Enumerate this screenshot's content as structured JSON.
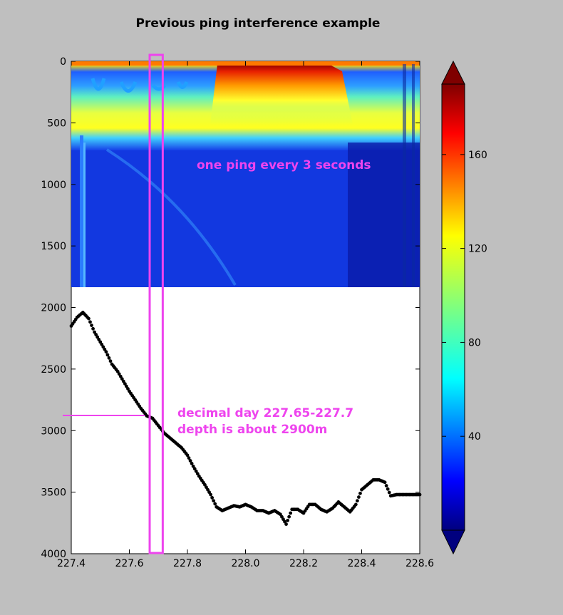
{
  "chart_data": {
    "type": "heatmap",
    "title": "Previous ping interference example",
    "xlabel": "",
    "ylabel": "",
    "xlim": [
      227.4,
      228.6
    ],
    "ylim": [
      4000,
      0
    ],
    "y_inverted": true,
    "x_ticks": [
      "227.4",
      "227.6",
      "227.8",
      "228.0",
      "228.2",
      "228.4",
      "228.6"
    ],
    "y_ticks": [
      "0",
      "500",
      "1000",
      "1500",
      "2000",
      "2500",
      "3000",
      "3500",
      "4000"
    ],
    "echogram_depth_range": [
      0,
      1830
    ],
    "colorbar": {
      "colormap": "jet",
      "range": [
        0,
        190
      ],
      "ticks": [
        "40",
        "80",
        "120",
        "160"
      ],
      "extend": "both"
    },
    "bottom_depth_series": {
      "marker": "black-dot",
      "x": [
        227.4,
        227.42,
        227.44,
        227.46,
        227.48,
        227.5,
        227.52,
        227.54,
        227.56,
        227.58,
        227.6,
        227.62,
        227.64,
        227.66,
        227.68,
        227.7,
        227.72,
        227.74,
        227.76,
        227.78,
        227.8,
        227.82,
        227.84,
        227.86,
        227.88,
        227.9,
        227.92,
        227.94,
        227.96,
        227.98,
        228.0,
        228.02,
        228.04,
        228.06,
        228.08,
        228.1,
        228.12,
        228.14,
        228.16,
        228.18,
        228.2,
        228.22,
        228.24,
        228.26,
        228.28,
        228.3,
        228.32,
        228.34,
        228.36,
        228.38,
        228.4,
        228.42,
        228.44,
        228.46,
        228.48,
        228.5,
        228.52,
        228.54,
        228.56,
        228.58,
        228.6
      ],
      "y": [
        2150,
        2080,
        2040,
        2090,
        2200,
        2280,
        2360,
        2460,
        2520,
        2600,
        2680,
        2750,
        2820,
        2880,
        2900,
        2960,
        3020,
        3060,
        3100,
        3140,
        3200,
        3290,
        3370,
        3440,
        3520,
        3620,
        3650,
        3630,
        3610,
        3620,
        3600,
        3620,
        3650,
        3650,
        3670,
        3650,
        3680,
        3760,
        3640,
        3640,
        3670,
        3600,
        3600,
        3640,
        3660,
        3630,
        3580,
        3620,
        3660,
        3600,
        3480,
        3440,
        3400,
        3400,
        3420,
        3530,
        3520,
        3520,
        3520,
        3520,
        3520
      ]
    },
    "annotations": {
      "ping_text": "one ping every 3 seconds",
      "day_text": "decimal day 227.65-227.7",
      "depth_text": "depth is about 2900m",
      "highlight_x": [
        227.67,
        227.715
      ],
      "highlight_color": "#ee44ee",
      "depth_marker_y": 2900
    }
  }
}
